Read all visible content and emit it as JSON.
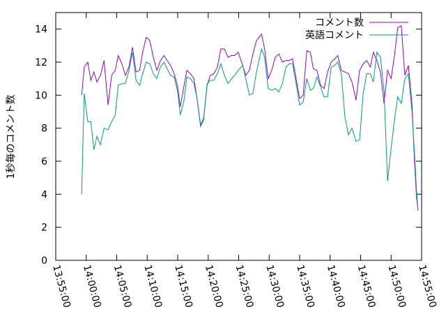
{
  "chart_data": {
    "type": "line",
    "ylabel": "1秒毎のコメント数",
    "x": [
      "13:59:15",
      "13:59:40",
      "14:00:15",
      "14:00:45",
      "14:01:15",
      "14:01:45",
      "14:02:20",
      "14:02:55",
      "14:03:35",
      "14:04:10",
      "14:04:45",
      "14:05:15",
      "14:05:50",
      "14:06:25",
      "14:07:00",
      "14:07:35",
      "14:08:10",
      "14:08:45",
      "14:09:15",
      "14:09:50",
      "14:10:25",
      "14:11:00",
      "14:11:35",
      "14:12:10",
      "14:12:45",
      "14:13:15",
      "14:13:50",
      "14:14:25",
      "14:15:00",
      "14:15:25",
      "14:16:00",
      "14:16:30",
      "14:17:05",
      "14:17:40",
      "14:18:10",
      "14:18:45",
      "14:19:15",
      "14:19:50",
      "14:20:20",
      "14:20:55",
      "14:21:30",
      "14:22:05",
      "14:22:40",
      "14:23:15",
      "14:23:50",
      "14:24:20",
      "14:24:55",
      "14:25:40",
      "14:26:10",
      "14:26:45",
      "14:27:20",
      "14:27:55",
      "14:28:45",
      "14:29:15",
      "14:29:50",
      "14:30:25",
      "14:31:00",
      "14:31:35",
      "14:32:10",
      "14:32:45",
      "14:33:15",
      "14:33:50",
      "14:34:25",
      "14:35:00",
      "14:35:35",
      "14:36:10",
      "14:36:45",
      "14:37:15",
      "14:37:50",
      "14:38:25",
      "14:39:00",
      "14:39:35",
      "14:40:10",
      "14:40:45",
      "14:41:15",
      "14:41:50",
      "14:42:25",
      "14:43:00",
      "14:43:35",
      "14:44:15",
      "14:44:50",
      "14:45:25",
      "14:46:00",
      "14:46:35",
      "14:47:05",
      "14:47:40",
      "14:48:15",
      "14:48:50",
      "14:49:25",
      "14:50:00",
      "14:50:35",
      "14:51:05",
      "14:51:40",
      "14:52:15",
      "14:52:50",
      "14:53:25",
      "14:53:50",
      "14:54:10",
      "14:54:25"
    ],
    "series": [
      {
        "name": "コメント数",
        "color": "#9400d3",
        "values": [
          10.0,
          11.7,
          12.0,
          10.9,
          11.4,
          10.8,
          11.2,
          12.1,
          9.4,
          11.2,
          11.5,
          12.4,
          11.9,
          11.2,
          11.7,
          12.9,
          11.4,
          11.5,
          12.6,
          13.5,
          13.3,
          12.3,
          11.5,
          12.1,
          12.4,
          12.1,
          11.8,
          11.3,
          10.5,
          9.3,
          10.5,
          11.5,
          11.3,
          11.0,
          9.8,
          8.2,
          8.6,
          10.6,
          11.2,
          11.3,
          11.7,
          12.8,
          12.8,
          12.3,
          12.4,
          12.4,
          12.6,
          11.8,
          11.2,
          11.5,
          12.5,
          13.3,
          13.7,
          12.8,
          11.0,
          11.5,
          12.3,
          12.5,
          12.0,
          12.1,
          12.1,
          12.2,
          11.0,
          9.8,
          10.0,
          12.7,
          12.6,
          11.6,
          11.5,
          10.6,
          10.4,
          11.4,
          12.0,
          12.2,
          12.4,
          11.5,
          11.4,
          11.3,
          10.8,
          9.7,
          11.5,
          11.9,
          12.1,
          11.7,
          12.6,
          12.1,
          11.4,
          9.5,
          11.5,
          11.0,
          12.5,
          14.1,
          14.2,
          11.2,
          11.8,
          9.5,
          6.0,
          3.8,
          3.0
        ]
      },
      {
        "name": "英語コメント",
        "color": "#009e73",
        "values": [
          4.0,
          10.1,
          8.4,
          8.4,
          6.7,
          7.5,
          7.0,
          8.0,
          7.9,
          8.4,
          8.8,
          10.6,
          10.7,
          10.7,
          11.5,
          12.6,
          10.9,
          10.6,
          11.3,
          12.0,
          11.9,
          11.3,
          11.0,
          11.7,
          12.0,
          11.6,
          11.2,
          11.1,
          10.2,
          8.8,
          9.6,
          11.1,
          11.0,
          10.7,
          9.8,
          8.1,
          8.5,
          10.7,
          10.9,
          10.9,
          11.3,
          11.9,
          11.2,
          10.7,
          11.0,
          11.2,
          11.5,
          11.8,
          11.0,
          10.0,
          10.1,
          11.4,
          12.8,
          12.3,
          10.4,
          10.3,
          10.4,
          10.2,
          10.7,
          11.7,
          11.9,
          11.9,
          10.7,
          9.4,
          9.6,
          11.0,
          10.3,
          10.4,
          11.1,
          10.5,
          9.9,
          9.9,
          11.7,
          11.8,
          12.0,
          11.3,
          8.7,
          7.6,
          8.0,
          7.2,
          7.3,
          10.1,
          11.3,
          11.3,
          10.8,
          12.6,
          12.3,
          10.3,
          4.8,
          6.8,
          8.6,
          9.9,
          9.5,
          11.0,
          11.3,
          9.0,
          6.5,
          4.2,
          3.0
        ]
      }
    ],
    "xlim": [
      "13:55:00",
      "14:55:00"
    ],
    "xticks": [
      "13:55:00",
      "14:00:00",
      "14:05:00",
      "14:10:00",
      "14:15:00",
      "14:20:00",
      "14:25:00",
      "14:30:00",
      "14:35:00",
      "14:40:00",
      "14:45:00",
      "14:50:00",
      "14:55:00"
    ],
    "ylim": [
      0,
      15
    ],
    "yticks": [
      0,
      2,
      4,
      6,
      8,
      10,
      12,
      14
    ],
    "legend": "top-right"
  }
}
